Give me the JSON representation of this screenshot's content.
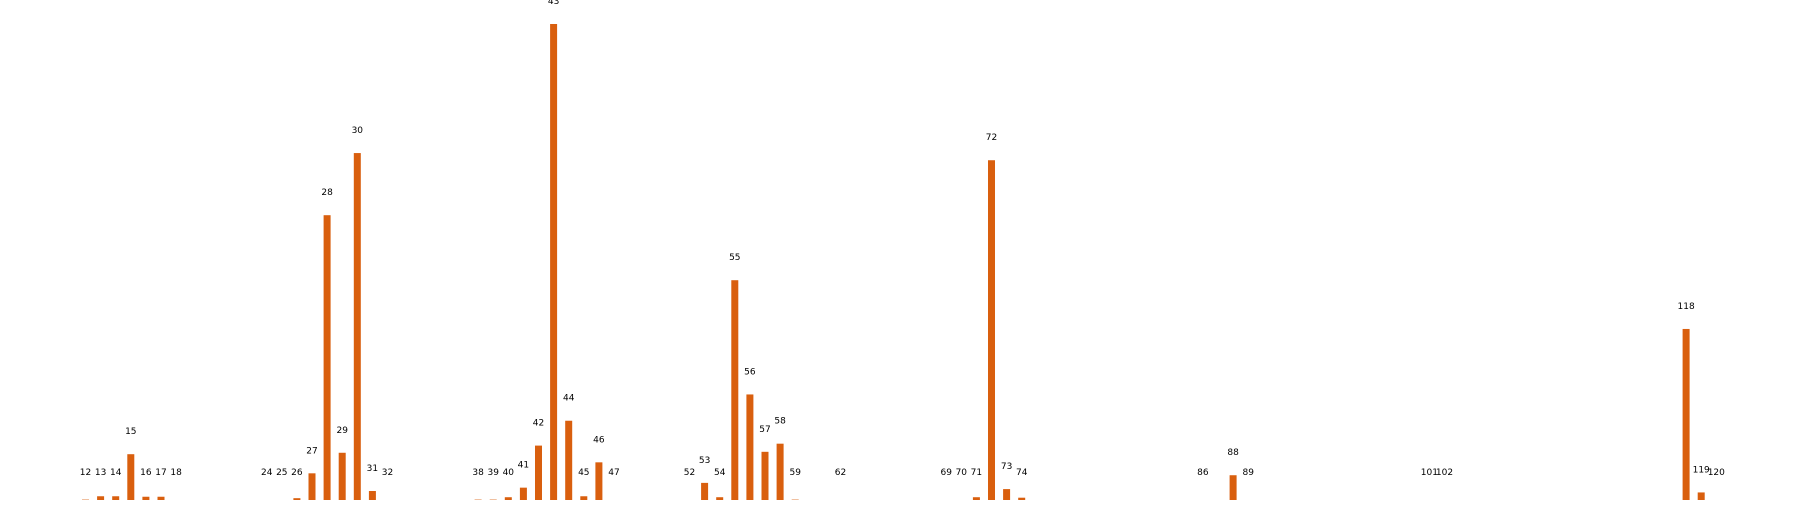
{
  "chart_data": {
    "type": "bar",
    "title": "",
    "xlabel": "",
    "ylabel": "",
    "bar_color": "#d95f0e",
    "grid": false,
    "axes_visible": false,
    "x_range": [
      0,
      134
    ],
    "ylim": [
      0,
      100
    ],
    "categories": [
      "12",
      "13",
      "14",
      "15",
      "16",
      "17",
      "18",
      "24",
      "25",
      "26",
      "27",
      "28",
      "29",
      "30",
      "31",
      "32",
      "38",
      "39",
      "40",
      "41",
      "42",
      "43",
      "44",
      "45",
      "46",
      "47",
      "52",
      "53",
      "54",
      "55",
      "56",
      "57",
      "58",
      "59",
      "62",
      "69",
      "70",
      "71",
      "72",
      "73",
      "74",
      "86",
      "88",
      "89",
      "101",
      "102",
      "118",
      "119",
      "120"
    ],
    "x": [
      12,
      13,
      14,
      15,
      16,
      17,
      18,
      24,
      25,
      26,
      27,
      28,
      29,
      30,
      31,
      32,
      38,
      39,
      40,
      41,
      42,
      43,
      44,
      45,
      46,
      47,
      52,
      53,
      54,
      55,
      56,
      57,
      58,
      59,
      62,
      69,
      70,
      71,
      72,
      73,
      74,
      86,
      88,
      89,
      101,
      102,
      118,
      119,
      120
    ],
    "values": [
      0.5,
      1.2,
      1.2,
      10,
      1.1,
      1.1,
      0.3,
      0,
      0,
      0.8,
      6,
      60,
      10.3,
      73,
      2.3,
      0.3,
      0.5,
      0.5,
      1,
      3,
      11.8,
      100,
      17,
      1.2,
      8.3,
      0,
      0.3,
      4,
      1,
      46.4,
      22.5,
      10.5,
      12.2,
      0.5,
      0,
      0.3,
      0.3,
      1,
      71.5,
      2.7,
      0.9,
      0,
      5.6,
      0.3,
      0.3,
      0.3,
      36.2,
      2,
      0.3
    ],
    "data_labels": [
      "12",
      "13",
      "14",
      "15",
      "16",
      "17",
      "18",
      "24",
      "25",
      "26",
      "27",
      "28",
      "29",
      "30",
      "31",
      "32",
      "38",
      "39",
      "40",
      "41",
      "42",
      "43",
      "44",
      "45",
      "46",
      "47",
      "52",
      "53",
      "54",
      "55",
      "56",
      "57",
      "58",
      "59",
      "62",
      "69",
      "70",
      "71",
      "72",
      "73",
      "74",
      "86",
      "88",
      "89",
      "101",
      "102",
      "118",
      "119",
      "120"
    ]
  }
}
